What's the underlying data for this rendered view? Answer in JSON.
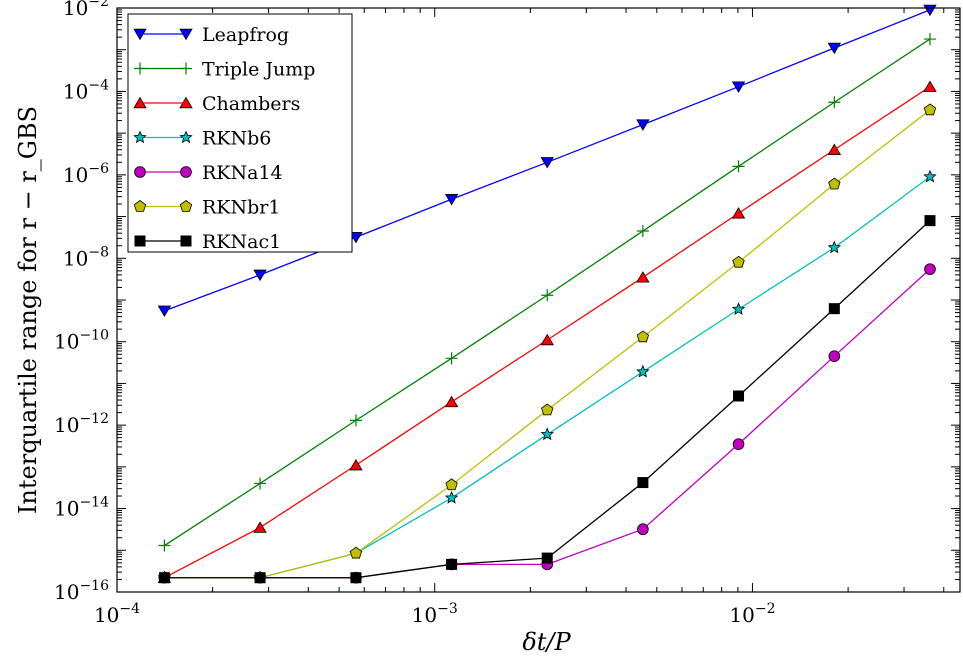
{
  "chart_data": {
    "type": "line",
    "xscale": "log",
    "yscale": "log",
    "xlabel": "δt/P",
    "ylabel": "Interquartile range for r − r_GBS",
    "xlim": [
      0.0001,
      0.045
    ],
    "ylim": [
      1e-16,
      0.01
    ],
    "x_ticks": [
      {
        "value": 0.0001,
        "base": "10",
        "exp": "−4"
      },
      {
        "value": 0.001,
        "base": "10",
        "exp": "−3"
      },
      {
        "value": 0.01,
        "base": "10",
        "exp": "−2"
      }
    ],
    "y_ticks": [
      {
        "value": 1e-16,
        "base": "10",
        "exp": "−16"
      },
      {
        "value": 1e-14,
        "base": "10",
        "exp": "−14"
      },
      {
        "value": 1e-12,
        "base": "10",
        "exp": "−12"
      },
      {
        "value": 1e-10,
        "base": "10",
        "exp": "−10"
      },
      {
        "value": 1e-08,
        "base": "10",
        "exp": "−8"
      },
      {
        "value": 1e-06,
        "base": "10",
        "exp": "−6"
      },
      {
        "value": 0.0001,
        "base": "10",
        "exp": "−4"
      },
      {
        "value": 0.01,
        "base": "10",
        "exp": "−2"
      }
    ],
    "x": [
      0.000141,
      0.000282,
      0.000565,
      0.00113,
      0.00226,
      0.00452,
      0.00904,
      0.0181,
      0.0362
    ],
    "legend_position": "top-left",
    "grid": false,
    "series": [
      {
        "name": "Leapfrog",
        "color": "#0000ff",
        "marker": "tri-down",
        "values": [
          5.5e-10,
          4e-09,
          3.2e-08,
          2.6e-07,
          2e-06,
          1.6e-05,
          0.00013,
          0.0011,
          0.009
        ]
      },
      {
        "name": "Triple Jump",
        "color": "#008000",
        "marker": "plus",
        "values": [
          1.3e-15,
          4e-14,
          1.3e-12,
          4e-11,
          1.3e-09,
          4.5e-08,
          1.6e-06,
          5.5e-05,
          0.0018
        ]
      },
      {
        "name": "Chambers",
        "color": "#ff0000",
        "marker": "tri-up",
        "values": [
          2.2e-16,
          3.5e-15,
          1.1e-13,
          3.6e-12,
          1.1e-10,
          3.5e-09,
          1.2e-07,
          4e-06,
          0.00013
        ]
      },
      {
        "name": "RKNb6",
        "color": "#00bfbf",
        "marker": "star",
        "values": [
          2.2e-16,
          2.2e-16,
          8.5e-16,
          1.8e-14,
          6e-13,
          1.9e-11,
          6e-10,
          1.8e-08,
          9e-07
        ]
      },
      {
        "name": "RKNa14",
        "color": "#bf00bf",
        "marker": "circle",
        "values": [
          2.2e-16,
          2.2e-16,
          2.2e-16,
          4.6e-16,
          4.6e-16,
          3.2e-15,
          3.5e-13,
          4.5e-11,
          5.5e-09
        ]
      },
      {
        "name": "RKNbr1",
        "color": "#bfbf00",
        "marker": "pentagon",
        "values": [
          2.2e-16,
          2.2e-16,
          8.5e-16,
          3.7e-14,
          2.3e-12,
          1.3e-10,
          8e-09,
          6e-07,
          3.6e-05
        ]
      },
      {
        "name": "RKNac1",
        "color": "#000000",
        "marker": "square",
        "values": [
          2.2e-16,
          2.2e-16,
          2.2e-16,
          4.6e-16,
          6.5e-16,
          4.2e-14,
          5e-12,
          6.2e-10,
          8e-08
        ]
      }
    ]
  }
}
